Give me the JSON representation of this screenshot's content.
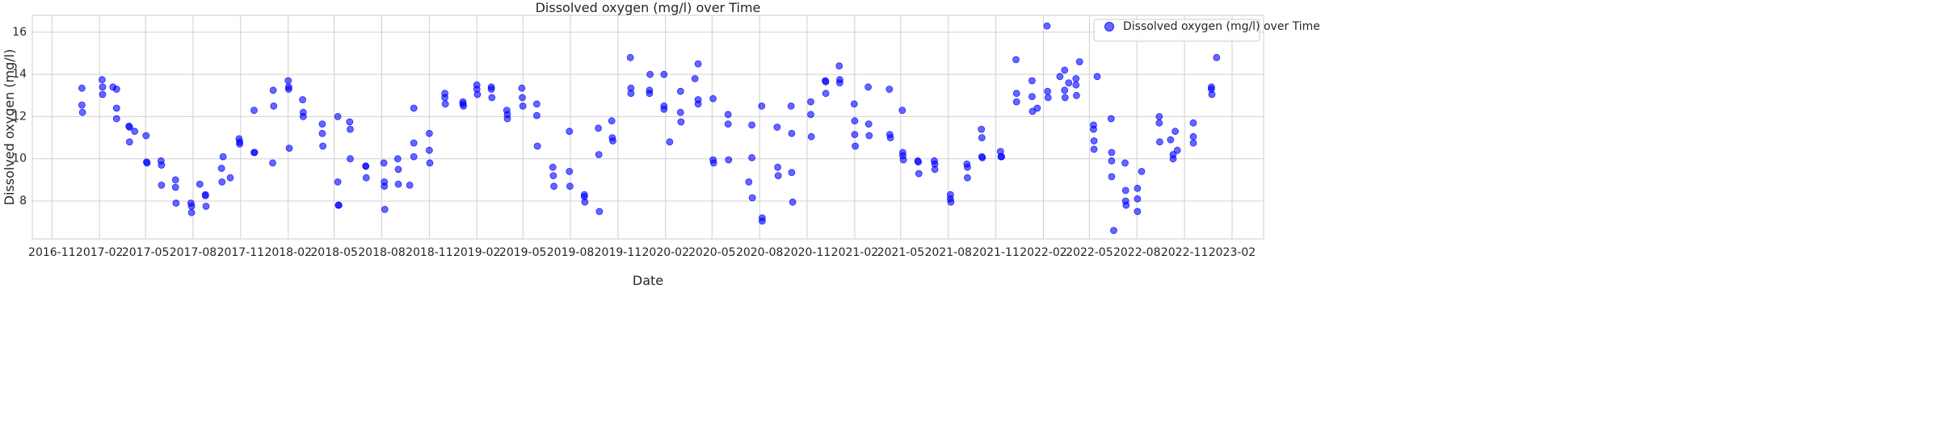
{
  "chart_data": {
    "type": "scatter",
    "title": "Dissolved oxygen (mg/l) over Time",
    "xlabel": "Date",
    "ylabel": "Dissolved oxygen (mg/l)",
    "x_ticks": [
      "2016-11",
      "2017-02",
      "2017-05",
      "2017-08",
      "2017-11",
      "2018-02",
      "2018-05",
      "2018-08",
      "2018-11",
      "2019-02",
      "2019-05",
      "2019-08",
      "2019-11",
      "2020-02",
      "2020-05",
      "2020-08",
      "2020-11",
      "2021-02",
      "2021-05",
      "2021-08",
      "2021-11",
      "2022-02",
      "2022-05",
      "2022-08",
      "2022-11",
      "2023-02"
    ],
    "y_ticks": [
      8,
      10,
      12,
      14,
      16
    ],
    "xlim": [
      "2016-09-24",
      "2023-04-03"
    ],
    "ylim": [
      6.2,
      16.8
    ],
    "grid": true,
    "legend_position": "top-right",
    "series": [
      {
        "name": "Dissolved oxygen (mg/l) over Time",
        "color": "#0000ff",
        "points": [
          [
            "2016-12-29",
            13.35
          ],
          [
            "2016-12-29",
            12.55
          ],
          [
            "2016-12-30",
            12.2
          ],
          [
            "2017-02-06",
            13.75
          ],
          [
            "2017-02-07",
            13.4
          ],
          [
            "2017-02-07",
            13.05
          ],
          [
            "2017-02-27",
            13.4
          ],
          [
            "2017-03-06",
            13.3
          ],
          [
            "2017-03-06",
            12.4
          ],
          [
            "2017-03-06",
            11.9
          ],
          [
            "2017-03-30",
            11.55
          ],
          [
            "2017-03-31",
            11.5
          ],
          [
            "2017-03-31",
            10.8
          ],
          [
            "2017-04-10",
            11.3
          ],
          [
            "2017-05-02",
            11.1
          ],
          [
            "2017-05-03",
            9.85
          ],
          [
            "2017-05-04",
            9.8
          ],
          [
            "2017-05-31",
            9.9
          ],
          [
            "2017-06-01",
            9.7
          ],
          [
            "2017-06-01",
            8.75
          ],
          [
            "2017-06-28",
            9.0
          ],
          [
            "2017-06-28",
            8.65
          ],
          [
            "2017-06-29",
            7.9
          ],
          [
            "2017-07-28",
            7.9
          ],
          [
            "2017-07-29",
            7.75
          ],
          [
            "2017-07-29",
            7.45
          ],
          [
            "2017-08-14",
            8.8
          ],
          [
            "2017-08-25",
            8.3
          ],
          [
            "2017-08-25",
            8.25
          ],
          [
            "2017-08-26",
            7.75
          ],
          [
            "2017-09-25",
            9.55
          ],
          [
            "2017-09-26",
            8.9
          ],
          [
            "2017-09-28",
            10.1
          ],
          [
            "2017-10-12",
            9.1
          ],
          [
            "2017-10-29",
            10.95
          ],
          [
            "2017-10-30",
            10.8
          ],
          [
            "2017-10-30",
            10.7
          ],
          [
            "2017-11-27",
            12.3
          ],
          [
            "2017-11-27",
            10.3
          ],
          [
            "2017-11-28",
            10.3
          ],
          [
            "2018-01-02",
            9.8
          ],
          [
            "2018-01-03",
            13.25
          ],
          [
            "2018-01-04",
            12.5
          ],
          [
            "2018-02-01",
            13.7
          ],
          [
            "2018-02-02",
            13.4
          ],
          [
            "2018-02-02",
            13.3
          ],
          [
            "2018-02-03",
            10.5
          ],
          [
            "2018-03-01",
            12.8
          ],
          [
            "2018-03-02",
            12.2
          ],
          [
            "2018-03-02",
            12.0
          ],
          [
            "2018-04-08",
            11.65
          ],
          [
            "2018-04-08",
            11.2
          ],
          [
            "2018-04-09",
            10.6
          ],
          [
            "2018-05-08",
            12.0
          ],
          [
            "2018-05-08",
            8.9
          ],
          [
            "2018-05-09",
            7.8
          ],
          [
            "2018-05-10",
            7.8
          ],
          [
            "2018-05-31",
            11.75
          ],
          [
            "2018-06-01",
            11.4
          ],
          [
            "2018-06-01",
            10.0
          ],
          [
            "2018-07-01",
            9.65
          ],
          [
            "2018-07-01",
            9.65
          ],
          [
            "2018-07-02",
            9.1
          ],
          [
            "2018-08-05",
            9.8
          ],
          [
            "2018-08-06",
            8.9
          ],
          [
            "2018-08-06",
            8.7
          ],
          [
            "2018-08-07",
            7.6
          ],
          [
            "2018-09-01",
            10.0
          ],
          [
            "2018-09-02",
            9.5
          ],
          [
            "2018-09-02",
            8.8
          ],
          [
            "2018-09-24",
            8.75
          ],
          [
            "2018-10-02",
            10.75
          ],
          [
            "2018-10-02",
            12.4
          ],
          [
            "2018-10-02",
            10.1
          ],
          [
            "2018-11-01",
            11.2
          ],
          [
            "2018-11-01",
            10.4
          ],
          [
            "2018-11-02",
            9.8
          ],
          [
            "2018-12-01",
            13.1
          ],
          [
            "2018-12-01",
            12.9
          ],
          [
            "2018-12-02",
            12.6
          ],
          [
            "2019-01-05",
            12.7
          ],
          [
            "2019-01-05",
            12.6
          ],
          [
            "2019-01-06",
            12.5
          ],
          [
            "2019-02-01",
            13.5
          ],
          [
            "2019-02-01",
            13.3
          ],
          [
            "2019-02-02",
            13.05
          ],
          [
            "2019-03-01",
            13.4
          ],
          [
            "2019-03-01",
            13.3
          ],
          [
            "2019-03-02",
            12.9
          ],
          [
            "2019-03-31",
            12.3
          ],
          [
            "2019-04-01",
            12.1
          ],
          [
            "2019-04-01",
            11.9
          ],
          [
            "2019-04-29",
            13.35
          ],
          [
            "2019-04-30",
            12.9
          ],
          [
            "2019-05-01",
            12.5
          ],
          [
            "2019-05-28",
            12.6
          ],
          [
            "2019-05-28",
            12.05
          ],
          [
            "2019-05-29",
            10.6
          ],
          [
            "2019-06-28",
            9.6
          ],
          [
            "2019-06-29",
            9.2
          ],
          [
            "2019-06-30",
            8.7
          ],
          [
            "2019-07-30",
            11.3
          ],
          [
            "2019-07-30",
            9.4
          ],
          [
            "2019-07-31",
            8.7
          ],
          [
            "2019-08-28",
            8.3
          ],
          [
            "2019-08-28",
            8.2
          ],
          [
            "2019-08-29",
            7.95
          ],
          [
            "2019-09-24",
            11.45
          ],
          [
            "2019-09-25",
            10.2
          ],
          [
            "2019-09-26",
            7.5
          ],
          [
            "2019-10-20",
            11.8
          ],
          [
            "2019-10-21",
            11.0
          ],
          [
            "2019-10-22",
            10.85
          ],
          [
            "2019-11-25",
            14.8
          ],
          [
            "2019-11-26",
            13.35
          ],
          [
            "2019-11-26",
            13.1
          ],
          [
            "2020-01-01",
            13.25
          ],
          [
            "2020-01-01",
            13.1
          ],
          [
            "2020-01-02",
            14.0
          ],
          [
            "2020-01-29",
            14.0
          ],
          [
            "2020-01-29",
            12.5
          ],
          [
            "2020-01-29",
            12.35
          ],
          [
            "2020-02-09",
            10.8
          ],
          [
            "2020-03-01",
            13.2
          ],
          [
            "2020-03-01",
            12.2
          ],
          [
            "2020-03-02",
            11.75
          ],
          [
            "2020-03-29",
            13.8
          ],
          [
            "2020-04-04",
            14.5
          ],
          [
            "2020-04-04",
            12.8
          ],
          [
            "2020-04-04",
            12.6
          ],
          [
            "2020-05-03",
            12.85
          ],
          [
            "2020-05-03",
            9.95
          ],
          [
            "2020-05-04",
            9.8
          ],
          [
            "2020-06-01",
            12.1
          ],
          [
            "2020-06-01",
            11.65
          ],
          [
            "2020-06-02",
            9.95
          ],
          [
            "2020-07-11",
            8.9
          ],
          [
            "2020-07-17",
            11.6
          ],
          [
            "2020-07-17",
            10.05
          ],
          [
            "2020-07-18",
            8.15
          ],
          [
            "2020-08-05",
            12.5
          ],
          [
            "2020-08-06",
            7.2
          ],
          [
            "2020-08-06",
            7.05
          ],
          [
            "2020-09-04",
            11.5
          ],
          [
            "2020-09-05",
            9.6
          ],
          [
            "2020-09-06",
            9.2
          ],
          [
            "2020-10-01",
            12.5
          ],
          [
            "2020-10-02",
            11.2
          ],
          [
            "2020-10-02",
            9.35
          ],
          [
            "2020-10-04",
            7.95
          ],
          [
            "2020-11-08",
            12.7
          ],
          [
            "2020-11-08",
            12.1
          ],
          [
            "2020-11-09",
            11.05
          ],
          [
            "2020-12-06",
            13.7
          ],
          [
            "2020-12-07",
            13.65
          ],
          [
            "2020-12-07",
            13.1
          ],
          [
            "2021-01-02",
            14.4
          ],
          [
            "2021-01-03",
            13.75
          ],
          [
            "2021-01-03",
            13.6
          ],
          [
            "2021-01-31",
            12.6
          ],
          [
            "2021-02-01",
            11.8
          ],
          [
            "2021-02-01",
            11.15
          ],
          [
            "2021-02-02",
            10.6
          ],
          [
            "2021-02-27",
            13.4
          ],
          [
            "2021-02-28",
            11.65
          ],
          [
            "2021-03-01",
            11.1
          ],
          [
            "2021-04-09",
            13.3
          ],
          [
            "2021-04-10",
            11.15
          ],
          [
            "2021-04-11",
            11.0
          ],
          [
            "2021-05-04",
            12.3
          ],
          [
            "2021-05-05",
            10.3
          ],
          [
            "2021-05-05",
            10.15
          ],
          [
            "2021-05-06",
            9.95
          ],
          [
            "2021-06-03",
            9.9
          ],
          [
            "2021-06-04",
            9.85
          ],
          [
            "2021-06-05",
            9.3
          ],
          [
            "2021-07-05",
            9.9
          ],
          [
            "2021-07-06",
            9.75
          ],
          [
            "2021-07-06",
            9.5
          ],
          [
            "2021-08-05",
            8.3
          ],
          [
            "2021-08-05",
            8.1
          ],
          [
            "2021-08-06",
            7.95
          ],
          [
            "2021-09-06",
            9.75
          ],
          [
            "2021-09-07",
            9.6
          ],
          [
            "2021-09-07",
            9.1
          ],
          [
            "2021-10-04",
            11.4
          ],
          [
            "2021-10-05",
            11.0
          ],
          [
            "2021-10-05",
            10.1
          ],
          [
            "2021-10-06",
            10.05
          ],
          [
            "2021-11-10",
            10.35
          ],
          [
            "2021-11-11",
            10.1
          ],
          [
            "2021-11-12",
            10.1
          ],
          [
            "2021-12-10",
            14.7
          ],
          [
            "2021-12-11",
            13.1
          ],
          [
            "2021-12-11",
            12.7
          ],
          [
            "2022-01-10",
            13.7
          ],
          [
            "2022-01-10",
            12.95
          ],
          [
            "2022-01-11",
            12.25
          ],
          [
            "2022-01-20",
            12.4
          ],
          [
            "2022-02-08",
            16.3
          ],
          [
            "2022-02-09",
            13.2
          ],
          [
            "2022-02-10",
            12.9
          ],
          [
            "2022-03-05",
            13.9
          ],
          [
            "2022-03-14",
            14.2
          ],
          [
            "2022-03-14",
            13.25
          ],
          [
            "2022-03-15",
            12.9
          ],
          [
            "2022-03-22",
            13.6
          ],
          [
            "2022-04-05",
            13.8
          ],
          [
            "2022-04-05",
            13.5
          ],
          [
            "2022-04-06",
            13.0
          ],
          [
            "2022-04-12",
            14.6
          ],
          [
            "2022-05-09",
            11.6
          ],
          [
            "2022-05-09",
            11.4
          ],
          [
            "2022-05-10",
            10.85
          ],
          [
            "2022-05-10",
            10.45
          ],
          [
            "2022-05-16",
            13.9
          ],
          [
            "2022-06-12",
            11.9
          ],
          [
            "2022-06-13",
            10.3
          ],
          [
            "2022-06-13",
            9.9
          ],
          [
            "2022-06-13",
            9.15
          ],
          [
            "2022-06-17",
            6.6
          ],
          [
            "2022-07-09",
            9.8
          ],
          [
            "2022-07-10",
            8.5
          ],
          [
            "2022-07-10",
            8.0
          ],
          [
            "2022-07-11",
            7.8
          ],
          [
            "2022-08-02",
            8.6
          ],
          [
            "2022-08-02",
            8.1
          ],
          [
            "2022-08-02",
            7.5
          ],
          [
            "2022-08-10",
            9.4
          ],
          [
            "2022-09-13",
            12.0
          ],
          [
            "2022-09-13",
            11.7
          ],
          [
            "2022-09-14",
            10.8
          ],
          [
            "2022-10-05",
            10.9
          ],
          [
            "2022-10-10",
            10.2
          ],
          [
            "2022-10-10",
            10.0
          ],
          [
            "2022-10-14",
            11.3
          ],
          [
            "2022-10-18",
            10.4
          ],
          [
            "2022-11-18",
            11.7
          ],
          [
            "2022-11-18",
            11.05
          ],
          [
            "2022-11-18",
            10.75
          ],
          [
            "2022-12-23",
            13.4
          ],
          [
            "2022-12-23",
            13.3
          ],
          [
            "2022-12-24",
            13.05
          ],
          [
            "2023-01-02",
            14.8
          ]
        ]
      }
    ]
  }
}
